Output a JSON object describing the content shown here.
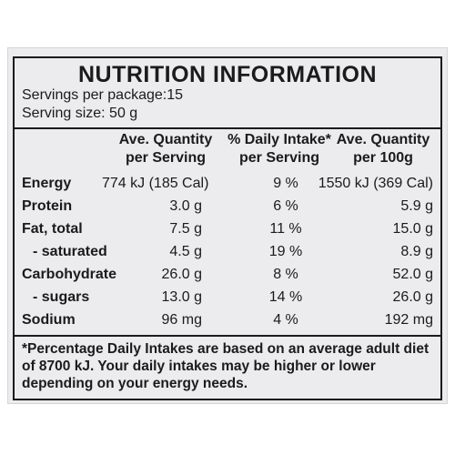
{
  "label": {
    "title": "NUTRITION INFORMATION",
    "servings_per_package": "Servings per package:15",
    "serving_size": "Serving size: 50 g",
    "headers": {
      "per_serving_1": "Ave. Quantity",
      "per_serving_2": "per Serving",
      "daily_intake_1": "% Daily Intake*",
      "daily_intake_2": "per Serving",
      "per_100g_1": "Ave. Quantity",
      "per_100g_2": "per 100g"
    },
    "rows": [
      {
        "nutrient": "Energy",
        "per_serving": "774  kJ (185 Cal)",
        "daily_intake": "9 %",
        "per_100g": "1550 kJ (369 Cal)"
      },
      {
        "nutrient": "Protein",
        "per_serving": "3.0 g",
        "daily_intake": "6 %",
        "per_100g": "5.9 g"
      },
      {
        "nutrient": "Fat, total",
        "per_serving": "7.5 g",
        "daily_intake": "11 %",
        "per_100g": "15.0 g"
      },
      {
        "nutrient": "- saturated",
        "per_serving": "4.5 g",
        "daily_intake": "19 %",
        "per_100g": "8.9 g"
      },
      {
        "nutrient": "Carbohydrate",
        "per_serving": "26.0 g",
        "daily_intake": "8 %",
        "per_100g": "52.0 g"
      },
      {
        "nutrient": "- sugars",
        "per_serving": "13.0 g",
        "daily_intake": "14 %",
        "per_100g": "26.0 g"
      },
      {
        "nutrient": "Sodium",
        "per_serving": "96 mg",
        "daily_intake": "4 %",
        "per_100g": "192 mg"
      }
    ],
    "footnote": "*Percentage Daily Intakes are based on an average adult diet of 8700 kJ. Your daily intakes may be higher or lower depending on your energy needs."
  }
}
